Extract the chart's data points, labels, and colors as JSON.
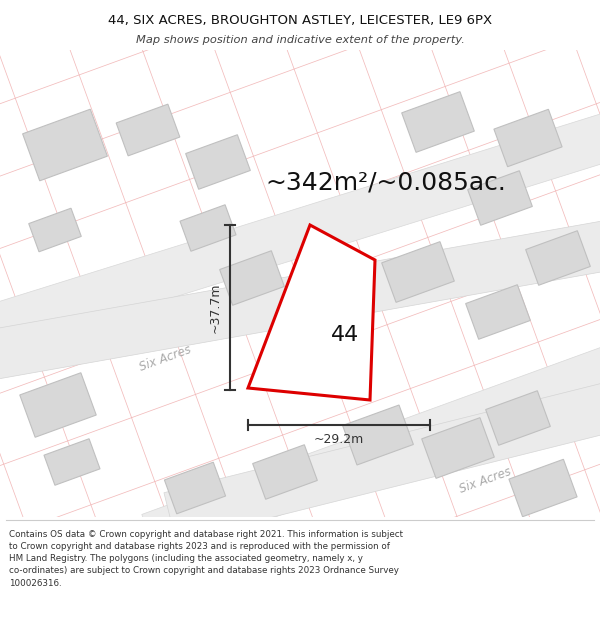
{
  "title_line1": "44, SIX ACRES, BROUGHTON ASTLEY, LEICESTER, LE9 6PX",
  "title_line2": "Map shows position and indicative extent of the property.",
  "footer_text": "Contains OS data © Crown copyright and database right 2021. This information is subject to Crown copyright and database rights 2023 and is reproduced with the permission of HM Land Registry. The polygons (including the associated geometry, namely x, y co-ordinates) are subject to Crown copyright and database rights 2023 Ordnance Survey 100026316.",
  "map_bg": "#f7f7f7",
  "road_fill": "#ececec",
  "road_edge": "#d8d8d8",
  "building_fill": "#d8d8d8",
  "building_stroke": "#c0c0c0",
  "parcel_color": "#f0b0b0",
  "plot_edge": "#dd0000",
  "plot_fill": "#ffffff",
  "dim_color": "#333333",
  "street_color": "#aaaaaa",
  "text_color": "#111111",
  "area_text": "~342m²/~0.085ac.",
  "width_text": "~29.2m",
  "height_text": "~37.7m",
  "label_number": "44",
  "street_name": "Six Acres",
  "title_fontsize": 9.5,
  "subtitle_fontsize": 8.2,
  "area_fontsize": 18,
  "label_fontsize": 16,
  "dim_fontsize": 9,
  "street_fontsize": 8.5,
  "footer_fontsize": 6.3
}
